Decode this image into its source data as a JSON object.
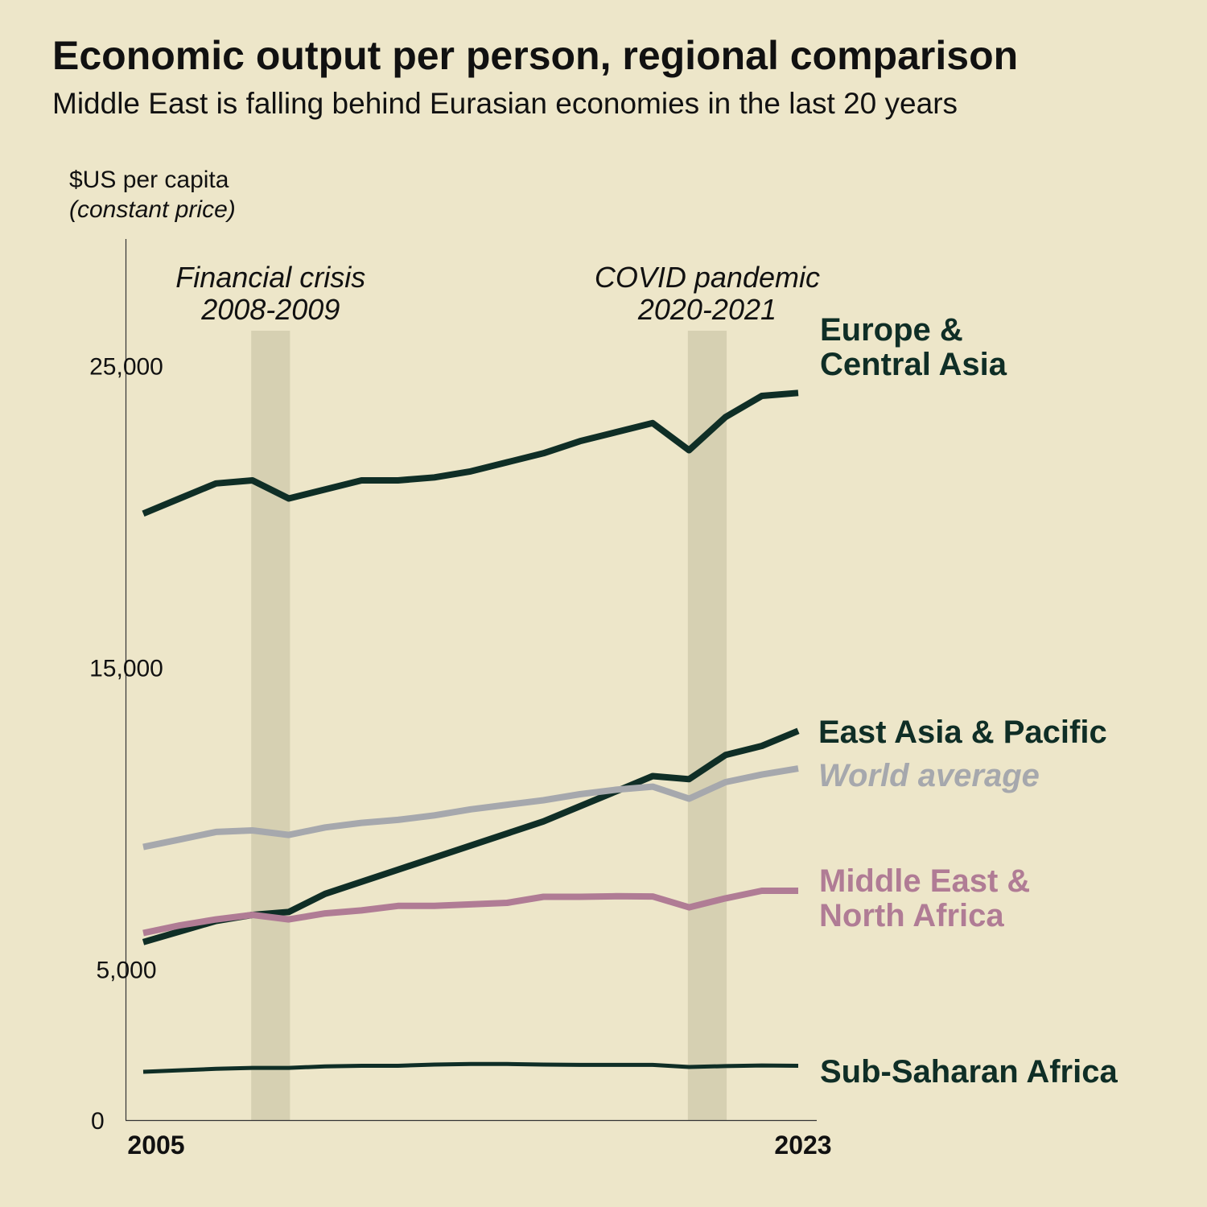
{
  "chart_data": {
    "type": "line",
    "title": "Economic output per person, regional comparison",
    "subtitle": "Middle East is falling behind Eurasian economies in the last 20 years",
    "ylabel_line1": "$US per capita",
    "ylabel_line2": "(constant price)",
    "ylim": [
      0,
      30000
    ],
    "xlim": [
      2005,
      2023
    ],
    "y_ticks": [
      {
        "value": 0,
        "label": "0"
      },
      {
        "value": 5000,
        "label": "5,000"
      },
      {
        "value": 15000,
        "label": "15,000"
      },
      {
        "value": 25000,
        "label": "25,000"
      }
    ],
    "x_ticks": [
      {
        "value": 2005,
        "label": "2005"
      },
      {
        "value": 2023,
        "label": "2023"
      }
    ],
    "grid": false,
    "x": [
      2005,
      2006,
      2007,
      2008,
      2009,
      2010,
      2011,
      2012,
      2013,
      2014,
      2015,
      2016,
      2017,
      2018,
      2019,
      2020,
      2021,
      2022,
      2023
    ],
    "shaded_periods": [
      {
        "start": 2008,
        "end": 2009,
        "label_line1": "Financial crisis",
        "label_line2": "2008-2009"
      },
      {
        "start": 2020,
        "end": 2021,
        "label_line1": "COVID pandemic",
        "label_line2": "2020-2021"
      }
    ],
    "series": [
      {
        "name": "Europe & Central Asia",
        "label_lines": [
          "Europe &",
          "Central Asia"
        ],
        "color": "#0f2e26",
        "values": [
          20100,
          20600,
          21100,
          21200,
          20600,
          20900,
          21200,
          21200,
          21300,
          21500,
          21800,
          22100,
          22500,
          22800,
          23100,
          22200,
          23300,
          24000,
          24100
        ]
      },
      {
        "name": "East Asia & Pacific",
        "label_lines": [
          "East Asia & Pacific"
        ],
        "color": "#0f2e26",
        "values": [
          5900,
          6250,
          6600,
          6800,
          6900,
          7500,
          7900,
          8300,
          8700,
          9100,
          9500,
          9900,
          10400,
          10900,
          11400,
          11300,
          12100,
          12400,
          12900
        ]
      },
      {
        "name": "World average",
        "label_lines": [
          "World average"
        ],
        "label_italic": true,
        "color": "#a6a8ad",
        "values": [
          9050,
          9300,
          9550,
          9600,
          9450,
          9700,
          9850,
          9950,
          10100,
          10300,
          10450,
          10600,
          10800,
          10950,
          11050,
          10650,
          11200,
          11450,
          11650
        ]
      },
      {
        "name": "Middle East & North Africa",
        "label_lines": [
          "Middle East &",
          "North Africa"
        ],
        "color": "#b07c95",
        "values": [
          6200,
          6450,
          6650,
          6800,
          6650,
          6850,
          6950,
          7100,
          7100,
          7150,
          7200,
          7400,
          7400,
          7420,
          7410,
          7050,
          7350,
          7600,
          7600
        ]
      },
      {
        "name": "Sub-Saharan Africa",
        "label_lines": [
          "Sub-Saharan Africa"
        ],
        "color": "#0f2e26",
        "values": [
          1600,
          1650,
          1700,
          1730,
          1730,
          1780,
          1800,
          1800,
          1840,
          1860,
          1860,
          1840,
          1830,
          1830,
          1830,
          1760,
          1790,
          1810,
          1800
        ]
      }
    ]
  }
}
